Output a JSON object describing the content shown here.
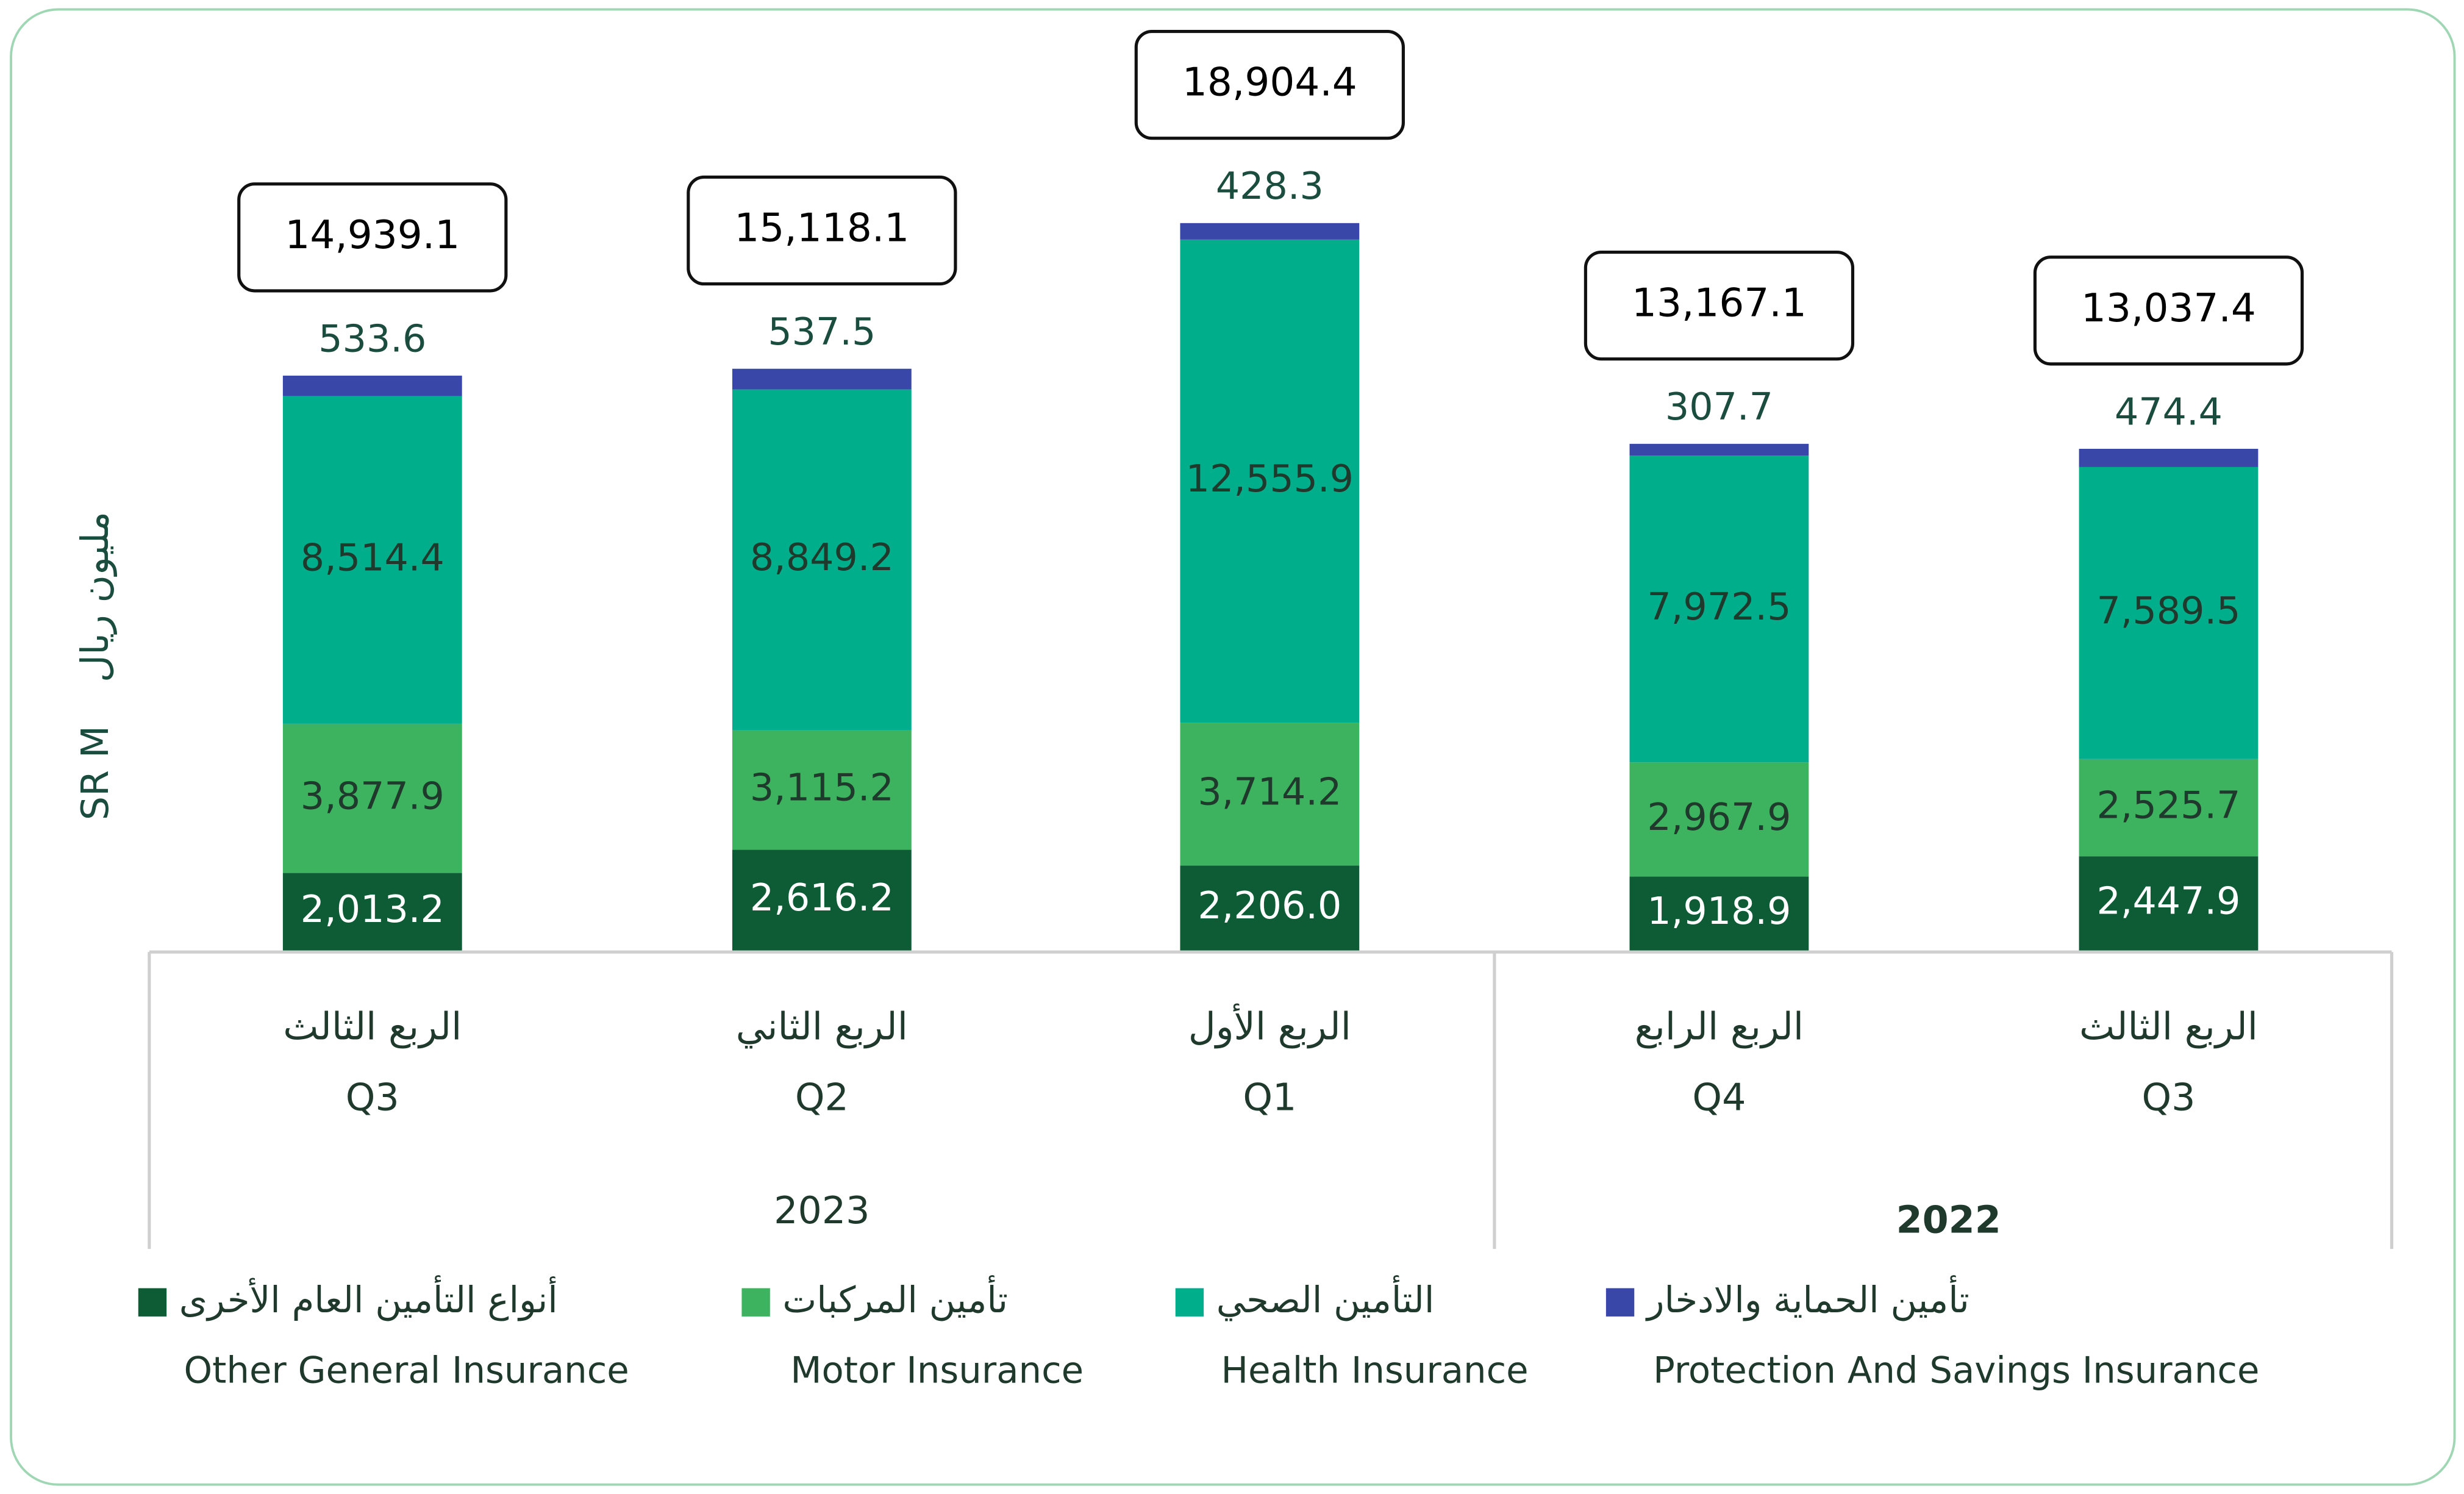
{
  "chart_data": {
    "type": "stacked_bar",
    "y_axis_label_en": "SR M",
    "y_axis_label_ar": "مليون ريال",
    "categories": [
      "Q3",
      "Q2",
      "Q1",
      "Q4",
      "Q3"
    ],
    "categories_ar": [
      "الربع الثالث",
      "الربع الثاني",
      "الربع الأول",
      "الربع الرابع",
      "الربع الثالث"
    ],
    "year_labels": [
      "2023",
      "2022"
    ],
    "series": [
      {
        "name": "Other General Insurance",
        "name_ar": "أنواع التأمين العام الأخرى",
        "color": "#0d5c36",
        "label_color": "#ffffff",
        "values": [
          2013.2,
          2616.2,
          2206.0,
          1918.9,
          2447.9
        ],
        "value_labels": [
          "2,013.2",
          "2,616.2",
          "2,206.0",
          "1,918.9",
          "2,447.9"
        ]
      },
      {
        "name": "Motor Insurance",
        "name_ar": "تأمين المركبات",
        "color": "#3db35f",
        "label_color": "#1f3a2c",
        "values": [
          3877.9,
          3115.2,
          3714.2,
          2967.9,
          2525.7
        ],
        "value_labels": [
          "3,877.9",
          "3,115.2",
          "3,714.2",
          "2,967.9",
          "2,525.7"
        ]
      },
      {
        "name": "Health Insurance",
        "name_ar": "التأمين الصحي",
        "color": "#00ae8b",
        "label_color": "#1f3a2c",
        "values": [
          8514.4,
          8849.2,
          12555.9,
          7972.5,
          7589.5
        ],
        "value_labels": [
          "8,514.4",
          "8,849.2",
          "12,555.9",
          "7,972.5",
          "7,589.5"
        ]
      },
      {
        "name": "Protection And Savings Insurance",
        "name_ar": "تأمين الحماية والادخار",
        "color": "#3847a8",
        "label_color": "#1b4d3e",
        "values": [
          533.6,
          537.5,
          428.3,
          307.7,
          474.4
        ]
      }
    ],
    "totals": [
      14939.1,
      15118.1,
      18904.4,
      13167.1,
      13037.4
    ],
    "totals_labels": [
      "14,939.1",
      "15,118.1",
      "18,904.4",
      "13,167.1",
      "13,037.4"
    ]
  }
}
